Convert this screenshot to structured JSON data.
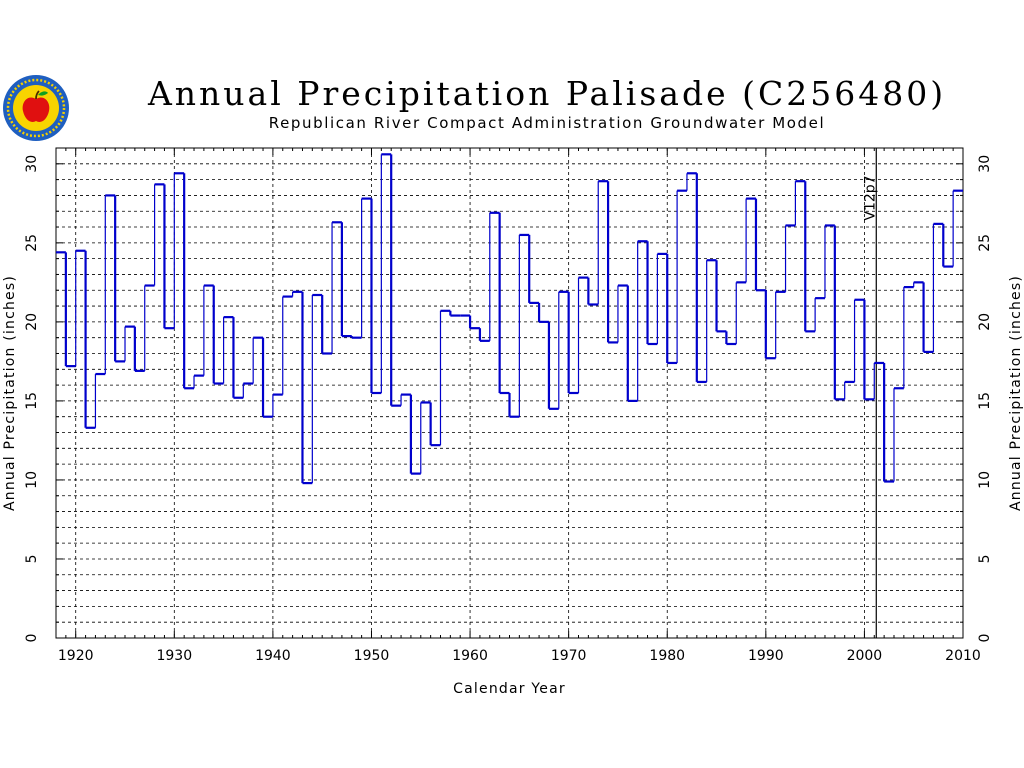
{
  "chart_data": {
    "type": "line",
    "step": true,
    "title": "Annual Precipitation Palisade (C256480)",
    "subtitle": "Republican River Compact Administration Groundwater Model",
    "xlabel": "Calendar Year",
    "ylabel": "Annual Precipitation (inches)",
    "xlim": [
      1918,
      2010
    ],
    "ylim": [
      0,
      31
    ],
    "xticks": [
      "1920",
      "1930",
      "1940",
      "1950",
      "1960",
      "1970",
      "1980",
      "1990",
      "2000",
      "2010"
    ],
    "yticks": [
      "0",
      "5",
      "10",
      "15",
      "20",
      "25",
      "30"
    ],
    "grid": true,
    "marker": {
      "x": 2001,
      "label": "V12p7"
    },
    "series": [
      {
        "color": "#0000cc",
        "x": [
          1918,
          1919,
          1920,
          1921,
          1922,
          1923,
          1924,
          1925,
          1926,
          1927,
          1928,
          1929,
          1930,
          1931,
          1932,
          1933,
          1934,
          1935,
          1936,
          1937,
          1938,
          1939,
          1940,
          1941,
          1942,
          1943,
          1944,
          1945,
          1946,
          1947,
          1948,
          1949,
          1950,
          1951,
          1952,
          1953,
          1954,
          1955,
          1956,
          1957,
          1958,
          1959,
          1960,
          1961,
          1962,
          1963,
          1964,
          1965,
          1966,
          1967,
          1968,
          1969,
          1970,
          1971,
          1972,
          1973,
          1974,
          1975,
          1976,
          1977,
          1978,
          1979,
          1980,
          1981,
          1982,
          1983,
          1984,
          1985,
          1986,
          1987,
          1988,
          1989,
          1990,
          1991,
          1992,
          1993,
          1994,
          1995,
          1996,
          1997,
          1998,
          1999,
          2000,
          2001,
          2002,
          2003,
          2004,
          2005,
          2006,
          2007,
          2008,
          2009
        ],
        "values": [
          24.4,
          17.2,
          24.5,
          13.3,
          16.7,
          28.0,
          17.5,
          19.7,
          16.9,
          22.3,
          28.7,
          19.6,
          29.4,
          15.8,
          16.6,
          22.3,
          16.1,
          20.3,
          15.2,
          16.1,
          19.0,
          14.0,
          15.4,
          21.6,
          21.9,
          9.8,
          21.7,
          18.0,
          26.3,
          19.1,
          19.0,
          27.8,
          15.5,
          30.6,
          14.7,
          15.4,
          10.4,
          14.9,
          12.2,
          20.7,
          20.4,
          20.4,
          19.6,
          18.8,
          26.9,
          15.5,
          14.0,
          25.5,
          21.2,
          20.0,
          14.5,
          21.9,
          15.5,
          22.8,
          21.1,
          28.9,
          18.7,
          22.3,
          15.0,
          25.1,
          18.6,
          24.3,
          17.4,
          28.3,
          29.4,
          16.2,
          23.9,
          19.4,
          18.6,
          22.5,
          27.8,
          22.0,
          17.7,
          21.9,
          26.1,
          28.9,
          19.4,
          21.5,
          26.1,
          15.1,
          16.2,
          21.4,
          15.1,
          17.4,
          9.9,
          15.8,
          22.2,
          22.5,
          18.1,
          26.2,
          23.5,
          28.3
        ]
      }
    ]
  }
}
